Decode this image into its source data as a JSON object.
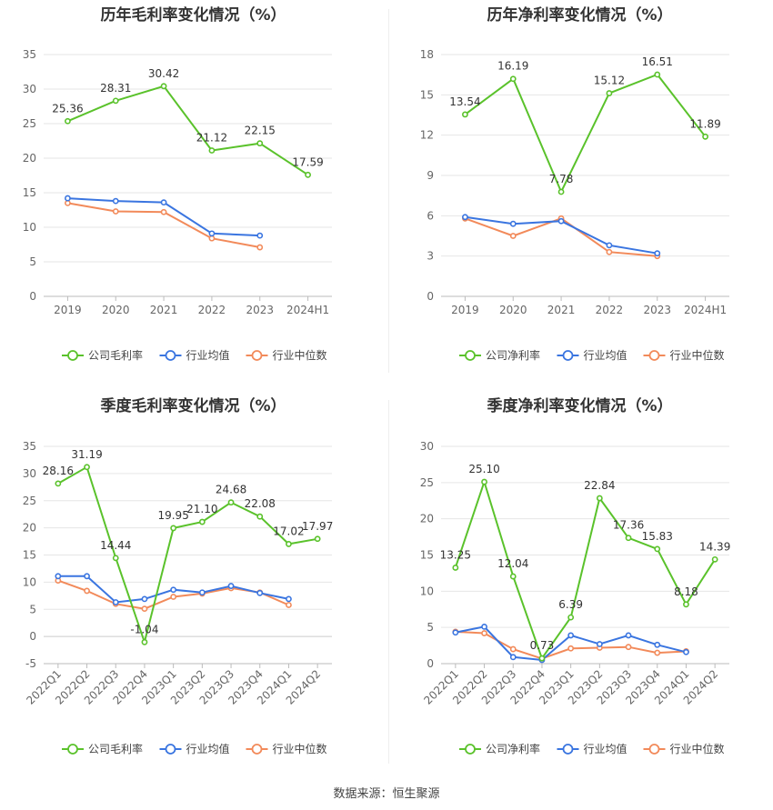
{
  "source": "数据来源：恒生聚源",
  "legend_labels": {
    "company_gross": "公司毛利率",
    "company_net": "公司净利率",
    "industry_avg": "行业均值",
    "industry_median": "行业中位数"
  },
  "colors": {
    "company": "#5ac22b",
    "avg": "#3a75e0",
    "median": "#f28a5a",
    "grid": "#e6e6e6",
    "axis": "#999999"
  },
  "chart_data": [
    {
      "type": "line",
      "title": "历年毛利率变化情况（%）",
      "categories": [
        "2019",
        "2020",
        "2021",
        "2022",
        "2023",
        "2024H1"
      ],
      "yticks": [
        0,
        5,
        10,
        15,
        20,
        25,
        30,
        35
      ],
      "ylim": [
        0,
        35
      ],
      "rotate_labels": false,
      "series": [
        {
          "key": "company",
          "name": "公司毛利率",
          "values": [
            25.36,
            28.31,
            30.42,
            21.12,
            22.15,
            17.59
          ],
          "labels": [
            "25.36",
            "28.31",
            "30.42",
            "21.12",
            "22.15",
            "17.59"
          ]
        },
        {
          "key": "avg",
          "name": "行业均值",
          "values": [
            14.2,
            13.8,
            13.6,
            9.1,
            8.8,
            null
          ]
        },
        {
          "key": "median",
          "name": "行业中位数",
          "values": [
            13.5,
            12.3,
            12.2,
            8.4,
            7.1,
            null
          ]
        }
      ]
    },
    {
      "type": "line",
      "title": "历年净利率变化情况（%）",
      "categories": [
        "2019",
        "2020",
        "2021",
        "2022",
        "2023",
        "2024H1"
      ],
      "yticks": [
        0,
        3,
        6,
        9,
        12,
        15,
        18
      ],
      "ylim": [
        0,
        18
      ],
      "rotate_labels": false,
      "series": [
        {
          "key": "company",
          "name": "公司净利率",
          "values": [
            13.54,
            16.19,
            7.78,
            15.12,
            16.51,
            11.89
          ],
          "labels": [
            "13.54",
            "16.19",
            "7.78",
            "15.12",
            "16.51",
            "11.89"
          ]
        },
        {
          "key": "avg",
          "name": "行业均值",
          "values": [
            5.9,
            5.4,
            5.6,
            3.8,
            3.2,
            null
          ]
        },
        {
          "key": "median",
          "name": "行业中位数",
          "values": [
            5.8,
            4.5,
            5.8,
            3.3,
            3.0,
            null
          ]
        }
      ]
    },
    {
      "type": "line",
      "title": "季度毛利率变化情况（%）",
      "categories": [
        "2022Q1",
        "2022Q2",
        "2022Q3",
        "2022Q4",
        "2023Q1",
        "2023Q2",
        "2023Q3",
        "2023Q4",
        "2024Q1",
        "2024Q2"
      ],
      "yticks": [
        -5,
        0,
        5,
        10,
        15,
        20,
        25,
        30,
        35
      ],
      "ylim": [
        -5,
        35
      ],
      "rotate_labels": true,
      "series": [
        {
          "key": "company",
          "name": "公司毛利率",
          "values": [
            28.16,
            31.19,
            14.44,
            -1.04,
            19.95,
            21.1,
            24.68,
            22.08,
            17.02,
            17.97
          ],
          "labels": [
            "28.16",
            "31.19",
            "14.44",
            "-1.04",
            "19.95",
            "21.10",
            "24.68",
            "22.08",
            "17.02",
            "17.97"
          ]
        },
        {
          "key": "avg",
          "name": "行业均值",
          "values": [
            11.1,
            11.1,
            6.3,
            6.9,
            8.6,
            8.1,
            9.3,
            8.0,
            6.9,
            null
          ]
        },
        {
          "key": "median",
          "name": "行业中位数",
          "values": [
            10.3,
            8.4,
            6.0,
            5.1,
            7.3,
            7.9,
            8.9,
            8.1,
            5.8,
            null
          ]
        }
      ]
    },
    {
      "type": "line",
      "title": "季度净利率变化情况（%）",
      "categories": [
        "2022Q1",
        "2022Q2",
        "2022Q3",
        "2022Q4",
        "2023Q1",
        "2023Q2",
        "2023Q3",
        "2023Q4",
        "2024Q1",
        "2024Q2"
      ],
      "yticks": [
        0,
        5,
        10,
        15,
        20,
        25,
        30
      ],
      "ylim": [
        0,
        30
      ],
      "rotate_labels": true,
      "series": [
        {
          "key": "company",
          "name": "公司净利率",
          "values": [
            13.25,
            25.1,
            12.04,
            0.73,
            6.39,
            22.84,
            17.36,
            15.83,
            8.18,
            14.39
          ],
          "labels": [
            "13.25",
            "25.10",
            "12.04",
            "0.73",
            "6.39",
            "22.84",
            "17.36",
            "15.83",
            "8.18",
            "14.39"
          ]
        },
        {
          "key": "avg",
          "name": "行业均值",
          "values": [
            4.3,
            5.1,
            0.9,
            0.5,
            3.9,
            2.7,
            3.9,
            2.6,
            1.6,
            null
          ]
        },
        {
          "key": "median",
          "name": "行业中位数",
          "values": [
            4.4,
            4.2,
            2.0,
            0.7,
            2.1,
            2.2,
            2.3,
            1.5,
            1.7,
            null
          ]
        }
      ]
    }
  ]
}
